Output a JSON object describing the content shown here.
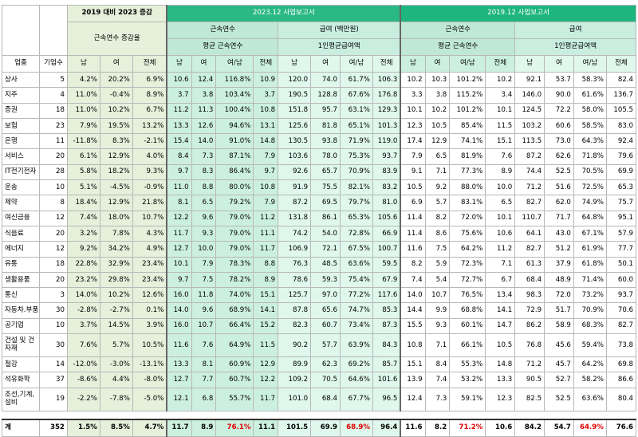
{
  "header": {
    "top_group_2019_2023": "2019 대비 2023 증감",
    "top_2023": "2023.12 사업보고서",
    "top_2019": "2019.12 사업보고서",
    "sub_tenure_change": "근속연수 증감율",
    "sub_tenure": "근속연수",
    "sub_tenure2": "평균 근속연수",
    "sub_pay_2023": "급여 (백만원)",
    "sub_pay_2023_2": "1인평균급여액",
    "sub_pay_2019": "급여",
    "sub_pay_2019_2": "1인평균급여액",
    "col_industry": "업종",
    "col_count": "기업수",
    "cols": [
      "남",
      "여",
      "전체",
      "남",
      "여",
      "여/남",
      "전체",
      "남",
      "여",
      "여/남",
      "전체",
      "남",
      "여",
      "여/남",
      "전체",
      "남",
      "여",
      "여/남",
      "전체"
    ]
  },
  "rows": [
    {
      "name": "상사",
      "v": [
        "5",
        "4.2%",
        "20.2%",
        "6.9%",
        "10.6",
        "12.4",
        "116.8%",
        "10.9",
        "120.0",
        "74.0",
        "61.7%",
        "106.3",
        "10.2",
        "10.3",
        "101.2%",
        "10.2",
        "92.1",
        "53.7",
        "58.3%",
        "82.4"
      ]
    },
    {
      "name": "지주",
      "v": [
        "4",
        "11.0%",
        "-0.4%",
        "8.9%",
        "3.7",
        "3.8",
        "103.4%",
        "3.7",
        "190.5",
        "128.8",
        "67.6%",
        "176.8",
        "3.3",
        "3.8",
        "115.2%",
        "3.4",
        "146.0",
        "90.0",
        "61.6%",
        "136.7"
      ]
    },
    {
      "name": "증권",
      "v": [
        "18",
        "11.0%",
        "10.2%",
        "6.7%",
        "11.2",
        "11.3",
        "100.4%",
        "10.8",
        "151.8",
        "95.7",
        "63.1%",
        "129.3",
        "10.1",
        "10.2",
        "101.2%",
        "10.1",
        "124.5",
        "72.2",
        "58.0%",
        "105.5"
      ]
    },
    {
      "name": "보험",
      "v": [
        "23",
        "7.9%",
        "19.5%",
        "13.2%",
        "13.3",
        "12.6",
        "94.6%",
        "13.1",
        "125.6",
        "81.8",
        "65.1%",
        "101.3",
        "12.3",
        "10.5",
        "85.4%",
        "11.5",
        "103.2",
        "60.6",
        "58.5%",
        "83.0"
      ]
    },
    {
      "name": "은행",
      "v": [
        "11",
        "-11.8%",
        "8.3%",
        "-2.1%",
        "15.4",
        "14.0",
        "91.0%",
        "14.8",
        "130.5",
        "93.8",
        "71.9%",
        "119.0",
        "17.4",
        "12.9",
        "74.1%",
        "15.1",
        "113.5",
        "73.0",
        "64.3%",
        "92.4"
      ]
    },
    {
      "name": "서비스",
      "v": [
        "20",
        "6.1%",
        "12.9%",
        "4.0%",
        "8.4",
        "7.3",
        "87.1%",
        "7.9",
        "103.6",
        "78.0",
        "75.3%",
        "93.7",
        "7.9",
        "6.5",
        "81.9%",
        "7.6",
        "87.2",
        "62.6",
        "71.8%",
        "79.6"
      ]
    },
    {
      "name": "IT전기전자",
      "v": [
        "28",
        "5.8%",
        "18.2%",
        "9.3%",
        "9.7",
        "8.3",
        "86.4%",
        "9.7",
        "92.6",
        "65.7",
        "70.9%",
        "83.9",
        "9.1",
        "7.1",
        "77.3%",
        "8.9",
        "74.4",
        "52.5",
        "70.5%",
        "69.9"
      ]
    },
    {
      "name": "운송",
      "v": [
        "10",
        "5.1%",
        "-4.5%",
        "-0.9%",
        "11.0",
        "8.8",
        "80.0%",
        "10.8",
        "91.9",
        "75.5",
        "82.1%",
        "83.2",
        "10.5",
        "9.2",
        "88.0%",
        "10.0",
        "71.2",
        "51.6",
        "72.5%",
        "65.3"
      ]
    },
    {
      "name": "제약",
      "v": [
        "8",
        "18.4%",
        "12.9%",
        "21.8%",
        "8.1",
        "6.5",
        "79.2%",
        "7.9",
        "87.2",
        "69.5",
        "79.7%",
        "81.0",
        "6.9",
        "5.7",
        "83.1%",
        "6.5",
        "82.7",
        "62.0",
        "74.9%",
        "75.7"
      ]
    },
    {
      "name": "여신금융",
      "v": [
        "12",
        "7.4%",
        "18.0%",
        "10.7%",
        "12.2",
        "9.6",
        "79.0%",
        "11.2",
        "131.8",
        "86.1",
        "65.3%",
        "105.6",
        "11.4",
        "8.2",
        "72.0%",
        "10.1",
        "110.7",
        "71.7",
        "64.8%",
        "95.1"
      ]
    },
    {
      "name": "식음료",
      "v": [
        "20",
        "3.2%",
        "7.8%",
        "4.3%",
        "11.7",
        "9.3",
        "79.0%",
        "11.1",
        "74.2",
        "54.0",
        "72.8%",
        "66.9",
        "11.4",
        "8.6",
        "75.6%",
        "10.6",
        "64.1",
        "43.0",
        "67.1%",
        "57.9"
      ]
    },
    {
      "name": "에너지",
      "v": [
        "12",
        "9.2%",
        "34.2%",
        "4.9%",
        "12.7",
        "10.0",
        "79.0%",
        "11.7",
        "106.9",
        "72.1",
        "67.5%",
        "100.7",
        "11.6",
        "7.5",
        "64.2%",
        "11.2",
        "82.7",
        "51.2",
        "61.9%",
        "77.7"
      ]
    },
    {
      "name": "유통",
      "v": [
        "18",
        "22.8%",
        "32.9%",
        "23.4%",
        "10.1",
        "7.9",
        "78.3%",
        "8.8",
        "76.3",
        "48.5",
        "63.6%",
        "59.5",
        "8.2",
        "5.9",
        "72.3%",
        "7.1",
        "61.3",
        "37.9",
        "61.8%",
        "50.1"
      ]
    },
    {
      "name": "생활용품",
      "v": [
        "20",
        "23.2%",
        "29.8%",
        "23.4%",
        "9.7",
        "7.5",
        "78.2%",
        "8.9",
        "78.6",
        "59.3",
        "75.4%",
        "67.9",
        "7.4",
        "5.4",
        "72.7%",
        "6.7",
        "68.4",
        "48.9",
        "71.4%",
        "60.0"
      ]
    },
    {
      "name": "통신",
      "v": [
        "3",
        "14.0%",
        "10.2%",
        "12.6%",
        "16.0",
        "11.8",
        "74.0%",
        "15.1",
        "125.7",
        "97.0",
        "77.2%",
        "117.6",
        "14.0",
        "10.7",
        "76.5%",
        "13.4",
        "98.3",
        "72.0",
        "73.2%",
        "93.7"
      ]
    },
    {
      "name": "자동차.부품",
      "v": [
        "30",
        "-2.8%",
        "-2.7%",
        "0.1%",
        "14.0",
        "9.6",
        "68.9%",
        "14.1",
        "87.8",
        "65.6",
        "74.7%",
        "85.3",
        "14.4",
        "9.9",
        "68.8%",
        "14.1",
        "72.9",
        "51.7",
        "70.9%",
        "70.6"
      ]
    },
    {
      "name": "공기업",
      "v": [
        "10",
        "3.7%",
        "14.5%",
        "3.9%",
        "16.0",
        "10.7",
        "66.4%",
        "15.2",
        "82.3",
        "60.7",
        "73.4%",
        "87.3",
        "15.5",
        "9.3",
        "60.1%",
        "14.7",
        "86.2",
        "58.9",
        "68.3%",
        "82.7"
      ]
    },
    {
      "name": "건설 및 건자재",
      "v": [
        "30",
        "7.6%",
        "5.7%",
        "10.5%",
        "11.6",
        "7.6",
        "64.9%",
        "11.5",
        "90.2",
        "57.7",
        "63.9%",
        "84.3",
        "10.8",
        "7.1",
        "66.1%",
        "10.5",
        "76.8",
        "45.6",
        "59.4%",
        "73.8"
      ]
    },
    {
      "name": "철강",
      "v": [
        "14",
        "-12.0%",
        "-3.0%",
        "-13.1%",
        "13.3",
        "8.1",
        "60.9%",
        "12.9",
        "89.9",
        "62.3",
        "69.2%",
        "85.7",
        "15.1",
        "8.4",
        "55.3%",
        "14.8",
        "71.2",
        "45.7",
        "64.2%",
        "69.8"
      ]
    },
    {
      "name": "석유화학",
      "v": [
        "37",
        "-8.6%",
        "4.4%",
        "-8.0%",
        "12.7",
        "7.7",
        "60.7%",
        "12.2",
        "109.2",
        "70.5",
        "64.6%",
        "101.6",
        "13.9",
        "7.4",
        "53.2%",
        "13.3",
        "90.5",
        "52.7",
        "58.2%",
        "86.6"
      ]
    },
    {
      "name": "조선,기계,설비",
      "v": [
        "19",
        "-2.2%",
        "-7.8%",
        "-5.0%",
        "12.1",
        "6.8",
        "55.7%",
        "11.7",
        "101.0",
        "68.4",
        "67.7%",
        "96.5",
        "12.4",
        "7.3",
        "59.1%",
        "12.3",
        "82.5",
        "52.5",
        "63.6%",
        "80.4"
      ]
    }
  ],
  "total": {
    "name": "계",
    "v": [
      "352",
      "1.5%",
      "8.5%",
      "4.7%",
      "11.7",
      "8.9",
      "76.1%",
      "11.1",
      "101.5",
      "69.9",
      "68.9%",
      "96.4",
      "11.6",
      "8.2",
      "71.2%",
      "10.6",
      "84.2",
      "54.7",
      "64.9%",
      "76.6"
    ]
  },
  "colors": {
    "header_green": "#2ab886",
    "pale_green": "#e6f0db",
    "mint": "#ccf0e0",
    "highlight_red": "#e00000"
  }
}
